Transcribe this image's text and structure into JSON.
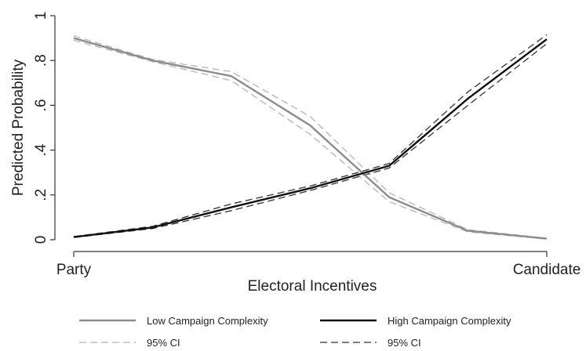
{
  "chart_data": {
    "type": "line",
    "xlabel": "Electoral Incentives",
    "ylabel": "Predicted Probability",
    "x_tick_labels": [
      "Party",
      "Candidate"
    ],
    "x": [
      0,
      1,
      2,
      3,
      4,
      5,
      6
    ],
    "xlim": [
      0,
      6
    ],
    "ylim": [
      0,
      1
    ],
    "y_ticks": [
      0,
      0.2,
      0.4,
      0.6,
      0.8,
      1
    ],
    "y_tick_labels": [
      "0",
      ".2",
      ".4",
      ".6",
      ".8",
      "1"
    ],
    "grid": false,
    "legend_position": "bottom",
    "series": [
      {
        "name": "Low Campaign Complexity",
        "key": "low",
        "color": "#8c8c8c",
        "style": "solid",
        "values": [
          0.9,
          0.8,
          0.73,
          0.51,
          0.19,
          0.04,
          0.005
        ]
      },
      {
        "key": "low_ci_upper",
        "color": "#b5b5b5",
        "style": "dashed",
        "values": [
          0.91,
          0.805,
          0.75,
          0.55,
          0.21,
          0.045,
          0.007
        ]
      },
      {
        "key": "low_ci_lower",
        "color": "#b5b5b5",
        "style": "dashed",
        "values": [
          0.89,
          0.795,
          0.71,
          0.47,
          0.17,
          0.035,
          0.003
        ]
      },
      {
        "name": "High Campaign Complexity",
        "key": "high",
        "color": "#111111",
        "style": "solid",
        "values": [
          0.012,
          0.055,
          0.145,
          0.23,
          0.33,
          0.63,
          0.895
        ]
      },
      {
        "key": "high_ci_upper",
        "color": "#333333",
        "style": "dashed",
        "values": [
          0.014,
          0.06,
          0.16,
          0.24,
          0.34,
          0.66,
          0.915
        ]
      },
      {
        "key": "high_ci_lower",
        "color": "#333333",
        "style": "dashed",
        "values": [
          0.01,
          0.05,
          0.13,
          0.22,
          0.32,
          0.6,
          0.875
        ]
      }
    ],
    "legend": [
      {
        "label": "Low Campaign Complexity",
        "color": "#8c8c8c",
        "style": "solid"
      },
      {
        "label": "High Campaign Complexity",
        "color": "#111111",
        "style": "solid"
      },
      {
        "label": "95% CI",
        "color": "#b5b5b5",
        "style": "dashed"
      },
      {
        "label": "95% CI",
        "color": "#333333",
        "style": "dashed"
      }
    ]
  }
}
